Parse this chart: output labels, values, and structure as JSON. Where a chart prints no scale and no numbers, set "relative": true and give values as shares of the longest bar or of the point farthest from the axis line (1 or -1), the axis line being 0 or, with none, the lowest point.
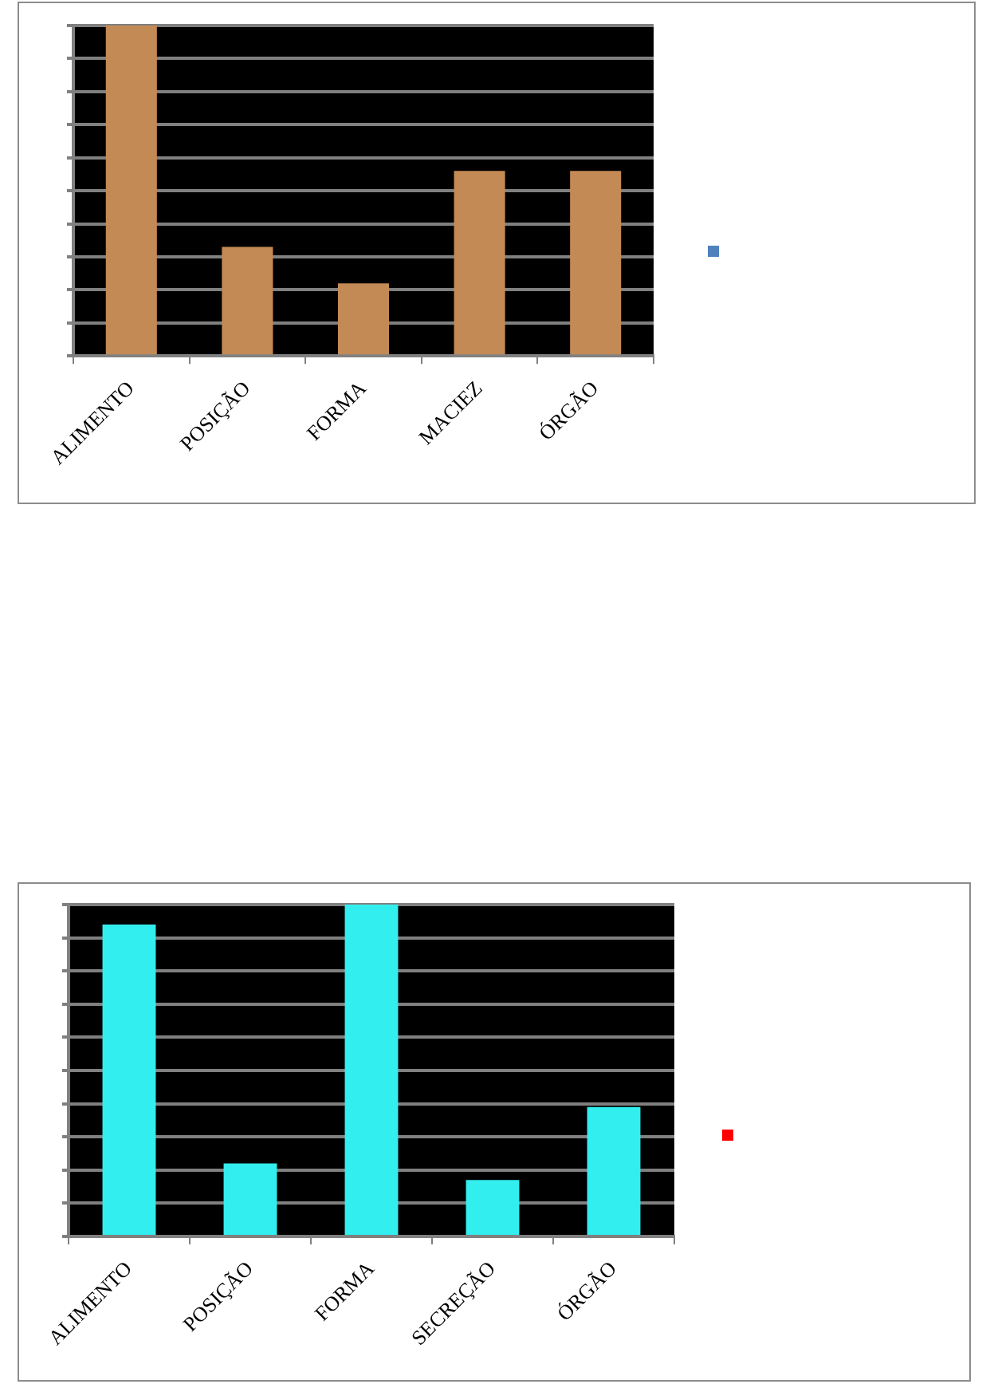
{
  "chart_data": [
    {
      "type": "bar",
      "categories": [
        "ALIMENTO",
        "POSIÇÃO",
        "FORMA",
        "MACIEZ",
        "ÓRGÃO"
      ],
      "relative": true,
      "series": [
        {
          "color": "#c48a55",
          "values": [
            1,
            0.33,
            0.22,
            0.56,
            0.56
          ]
        }
      ],
      "grid": "y"
    },
    {
      "type": "bar",
      "categories": [
        "ALIMENTO",
        "POSIÇÃO",
        "FORMA",
        "SECREÇÃO",
        "ÓRGÃO"
      ],
      "relative": true,
      "series": [
        {
          "color": "#33eeee",
          "values": [
            0.94,
            0.22,
            1,
            0.17,
            0.39
          ]
        }
      ],
      "grid": "y"
    }
  ]
}
